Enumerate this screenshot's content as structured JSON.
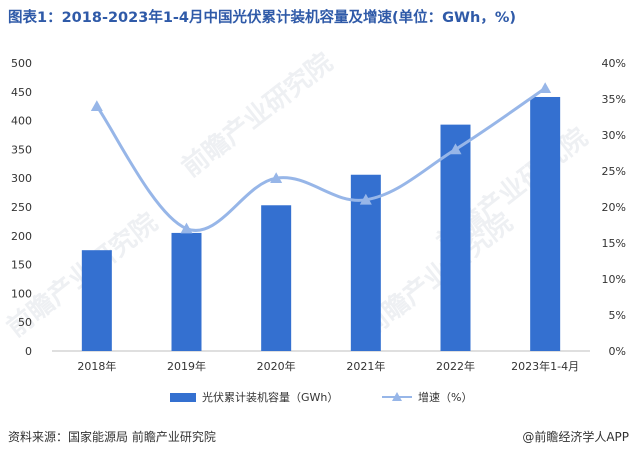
{
  "title": "图表1：2018-2023年1-4月中国光伏累计装机容量及增速(单位：GWh，%)",
  "source": "资料来源：国家能源局 前瞻产业研究院",
  "brand": "@前瞻经济学人APP",
  "watermark": "前瞻产业研究院",
  "colors": {
    "bar": "#3470d0",
    "line": "#97b6e8",
    "title": "#2f5aa8"
  },
  "chart_data": {
    "type": "bar",
    "categories": [
      "2018年",
      "2019年",
      "2020年",
      "2021年",
      "2022年",
      "2023年1-4月"
    ],
    "series": [
      {
        "name": "光伏累计装机容量（GWh）",
        "type": "bar",
        "axis": "left",
        "values": [
          175,
          205,
          253,
          306,
          393,
          441
        ]
      },
      {
        "name": "增速（%）",
        "type": "line",
        "axis": "right",
        "marker": "triangle",
        "values": [
          34,
          17,
          24,
          21,
          28,
          36.5
        ]
      }
    ],
    "y_left": {
      "min": 0,
      "max": 500,
      "ticks": [
        0,
        50,
        100,
        150,
        200,
        250,
        300,
        350,
        400,
        450,
        500
      ]
    },
    "y_right": {
      "min": 0,
      "max": 40,
      "ticks": [
        "0%",
        "5%",
        "10%",
        "15%",
        "20%",
        "25%",
        "30%",
        "35%",
        "40%"
      ]
    },
    "legend_position": "bottom",
    "grid": false
  }
}
